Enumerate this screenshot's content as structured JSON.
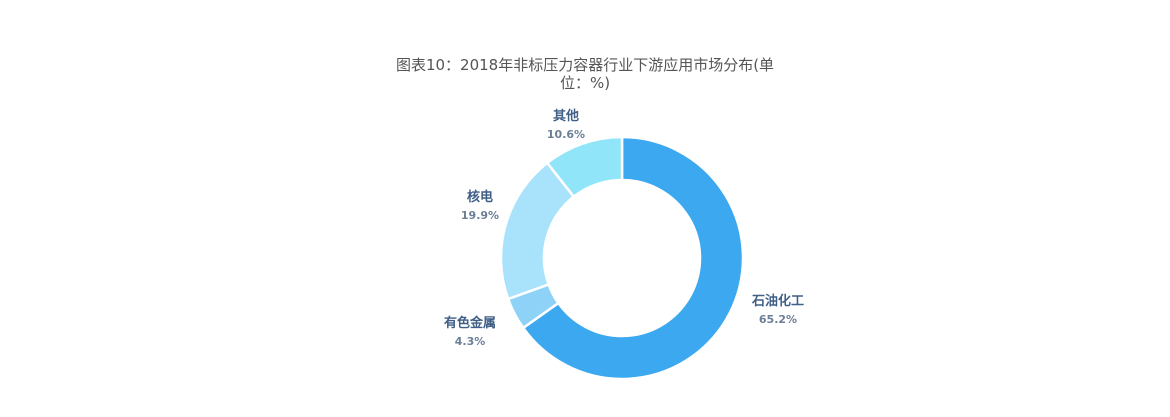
{
  "chart_data": {
    "type": "pie",
    "title_line1": "图表10：2018年非标压力容器行业下游应用市场分布(单",
    "title_line2": "位：%)",
    "donut": true,
    "slices": [
      {
        "label": "石油化工",
        "value": 65.2,
        "value_text": "65.2%",
        "color": "#3ca8f0"
      },
      {
        "label": "有色金属",
        "value": 4.3,
        "value_text": "4.3%",
        "color": "#8ed2f8"
      },
      {
        "label": "核电",
        "value": 19.9,
        "value_text": "19.9%",
        "color": "#a9e2fb"
      },
      {
        "label": "其他",
        "value": 10.6,
        "value_text": "10.6%",
        "color": "#90e6f8"
      }
    ]
  }
}
